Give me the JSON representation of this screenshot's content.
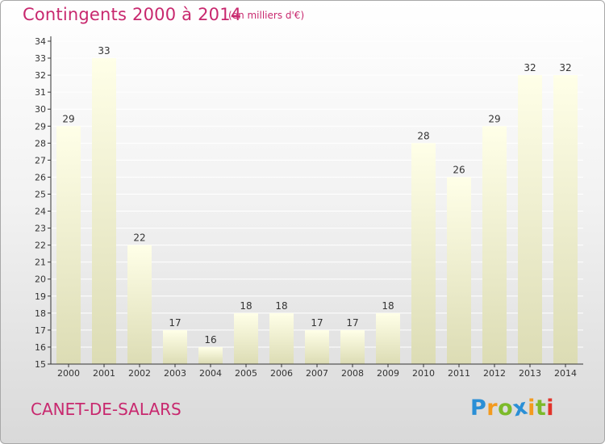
{
  "chart_data": {
    "type": "bar",
    "title": "Contingents 2000 à 2014",
    "subtitle": "(en milliers d'€)",
    "categories": [
      "2000",
      "2001",
      "2002",
      "2003",
      "2004",
      "2005",
      "2006",
      "2007",
      "2008",
      "2009",
      "2010",
      "2011",
      "2012",
      "2013",
      "2014"
    ],
    "values": [
      29,
      33,
      22,
      17,
      16,
      18,
      18,
      17,
      17,
      18,
      28,
      26,
      29,
      32,
      32
    ],
    "xlabel": "",
    "ylabel": "",
    "ylim": [
      15,
      34
    ],
    "yticks": [
      15,
      16,
      17,
      18,
      19,
      20,
      21,
      22,
      23,
      24,
      25,
      26,
      27,
      28,
      29,
      30,
      31,
      32,
      33,
      34
    ],
    "grid": true,
    "data_labels": true,
    "colors": {
      "bar_top": "#ffffe8",
      "bar_bottom": "#dcdcb4",
      "grid": "#ffffff",
      "axis": "#333333",
      "title": "#c8286e"
    }
  },
  "footer": {
    "town": "CANET-DE-SALARS",
    "logo": {
      "text": "Proxiti",
      "letters": [
        {
          "ch": "P",
          "color": "#2a8fd6"
        },
        {
          "ch": "r",
          "color": "#f39a1e"
        },
        {
          "ch": "o",
          "color": "#7cba2a"
        },
        {
          "ch": "x",
          "color": "#2a8fd6"
        },
        {
          "ch": "i",
          "color": "#f39a1e"
        },
        {
          "ch": "t",
          "color": "#7cba2a"
        },
        {
          "ch": "i",
          "color": "#e2332a"
        }
      ]
    }
  }
}
